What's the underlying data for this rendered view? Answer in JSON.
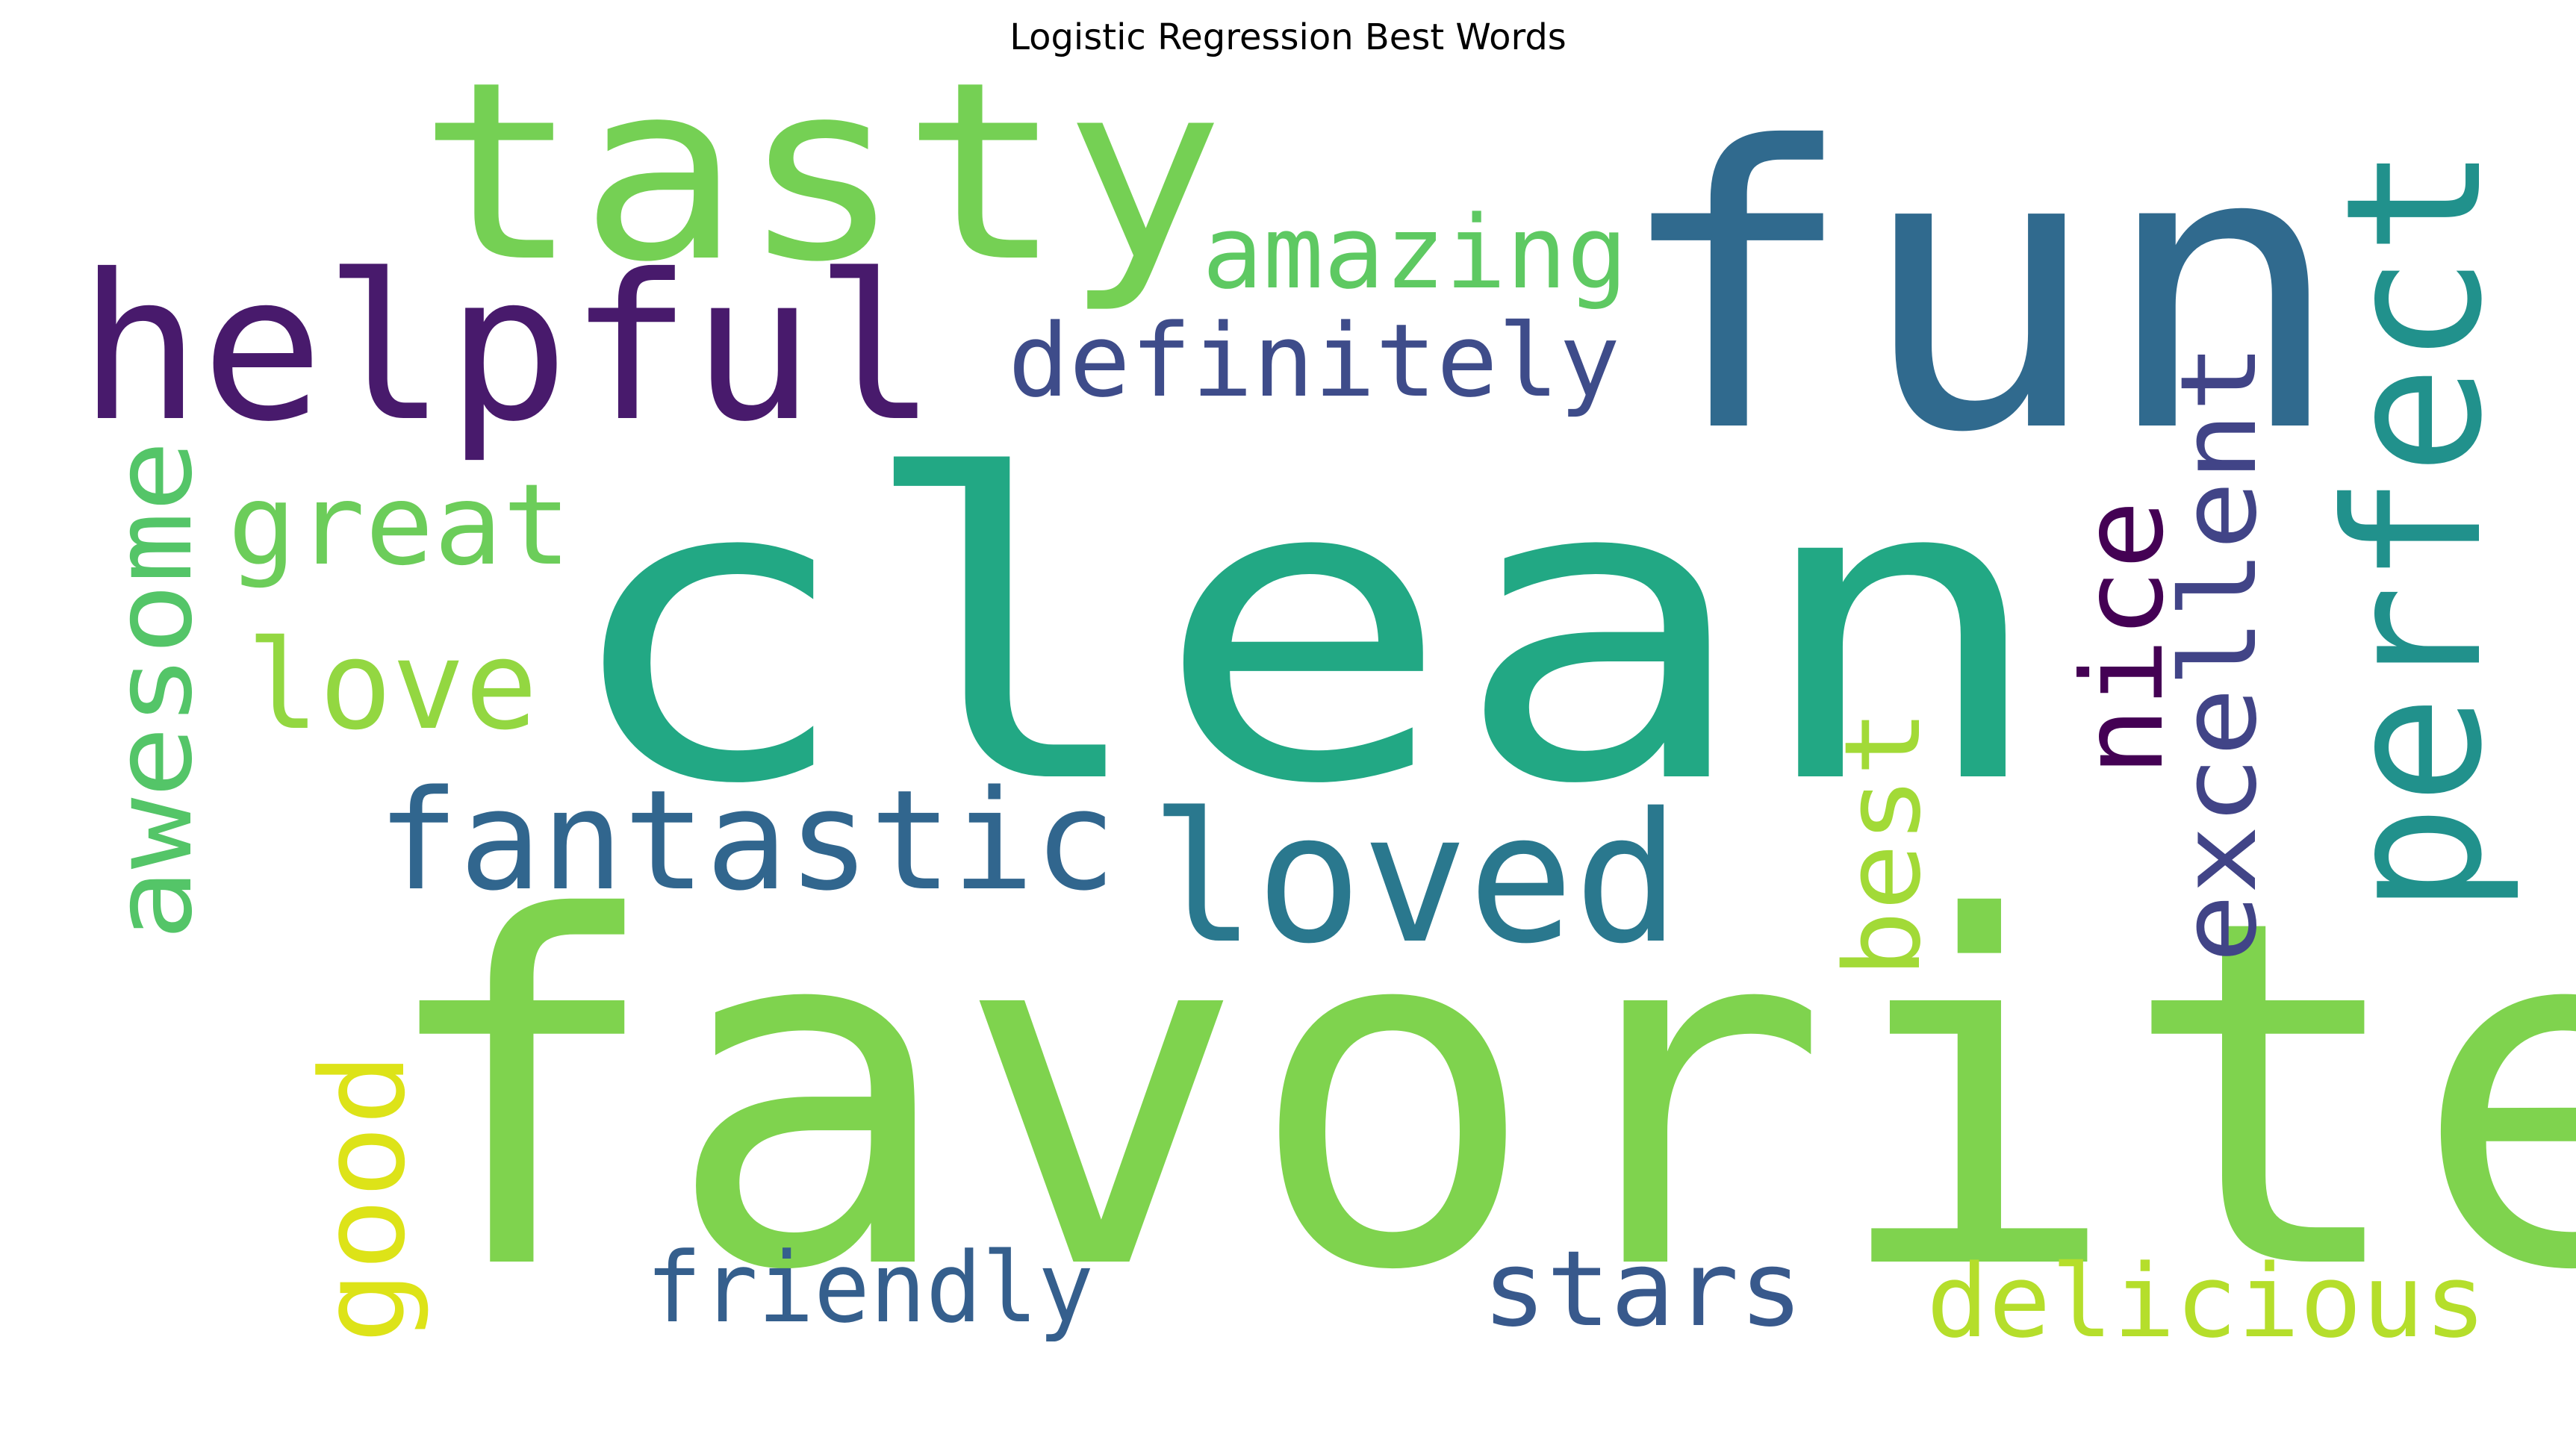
{
  "title": "Logistic Regression Best Words",
  "words": [
    {
      "text": "favorite",
      "color": "#7fd34e",
      "orientation": "horizontal"
    },
    {
      "text": "clean",
      "color": "#22a884",
      "orientation": "horizontal"
    },
    {
      "text": "fun",
      "color": "#306a8e",
      "orientation": "horizontal"
    },
    {
      "text": "tasty",
      "color": "#75d054",
      "orientation": "horizontal"
    },
    {
      "text": "helpful",
      "color": "#481a6c",
      "orientation": "horizontal"
    },
    {
      "text": "perfect",
      "color": "#21918c",
      "orientation": "vertical"
    },
    {
      "text": "loved",
      "color": "#2a788e",
      "orientation": "horizontal"
    },
    {
      "text": "fantastic",
      "color": "#31668e",
      "orientation": "horizontal"
    },
    {
      "text": "amazing",
      "color": "#5ec962",
      "orientation": "horizontal"
    },
    {
      "text": "definitely",
      "color": "#3e4c8a",
      "orientation": "horizontal"
    },
    {
      "text": "great",
      "color": "#6ccd5a",
      "orientation": "horizontal"
    },
    {
      "text": "love",
      "color": "#93d741",
      "orientation": "horizontal"
    },
    {
      "text": "awesome",
      "color": "#54c568",
      "orientation": "vertical"
    },
    {
      "text": "excellent",
      "color": "#414487",
      "orientation": "vertical"
    },
    {
      "text": "nice",
      "color": "#440154",
      "orientation": "vertical"
    },
    {
      "text": "best",
      "color": "#a2da37",
      "orientation": "vertical"
    },
    {
      "text": "good",
      "color": "#dde318",
      "orientation": "vertical"
    },
    {
      "text": "friendly",
      "color": "#355f8d",
      "orientation": "horizontal"
    },
    {
      "text": "stars",
      "color": "#38598c",
      "orientation": "horizontal"
    },
    {
      "text": "delicious",
      "color": "#b5de2b",
      "orientation": "horizontal"
    }
  ]
}
